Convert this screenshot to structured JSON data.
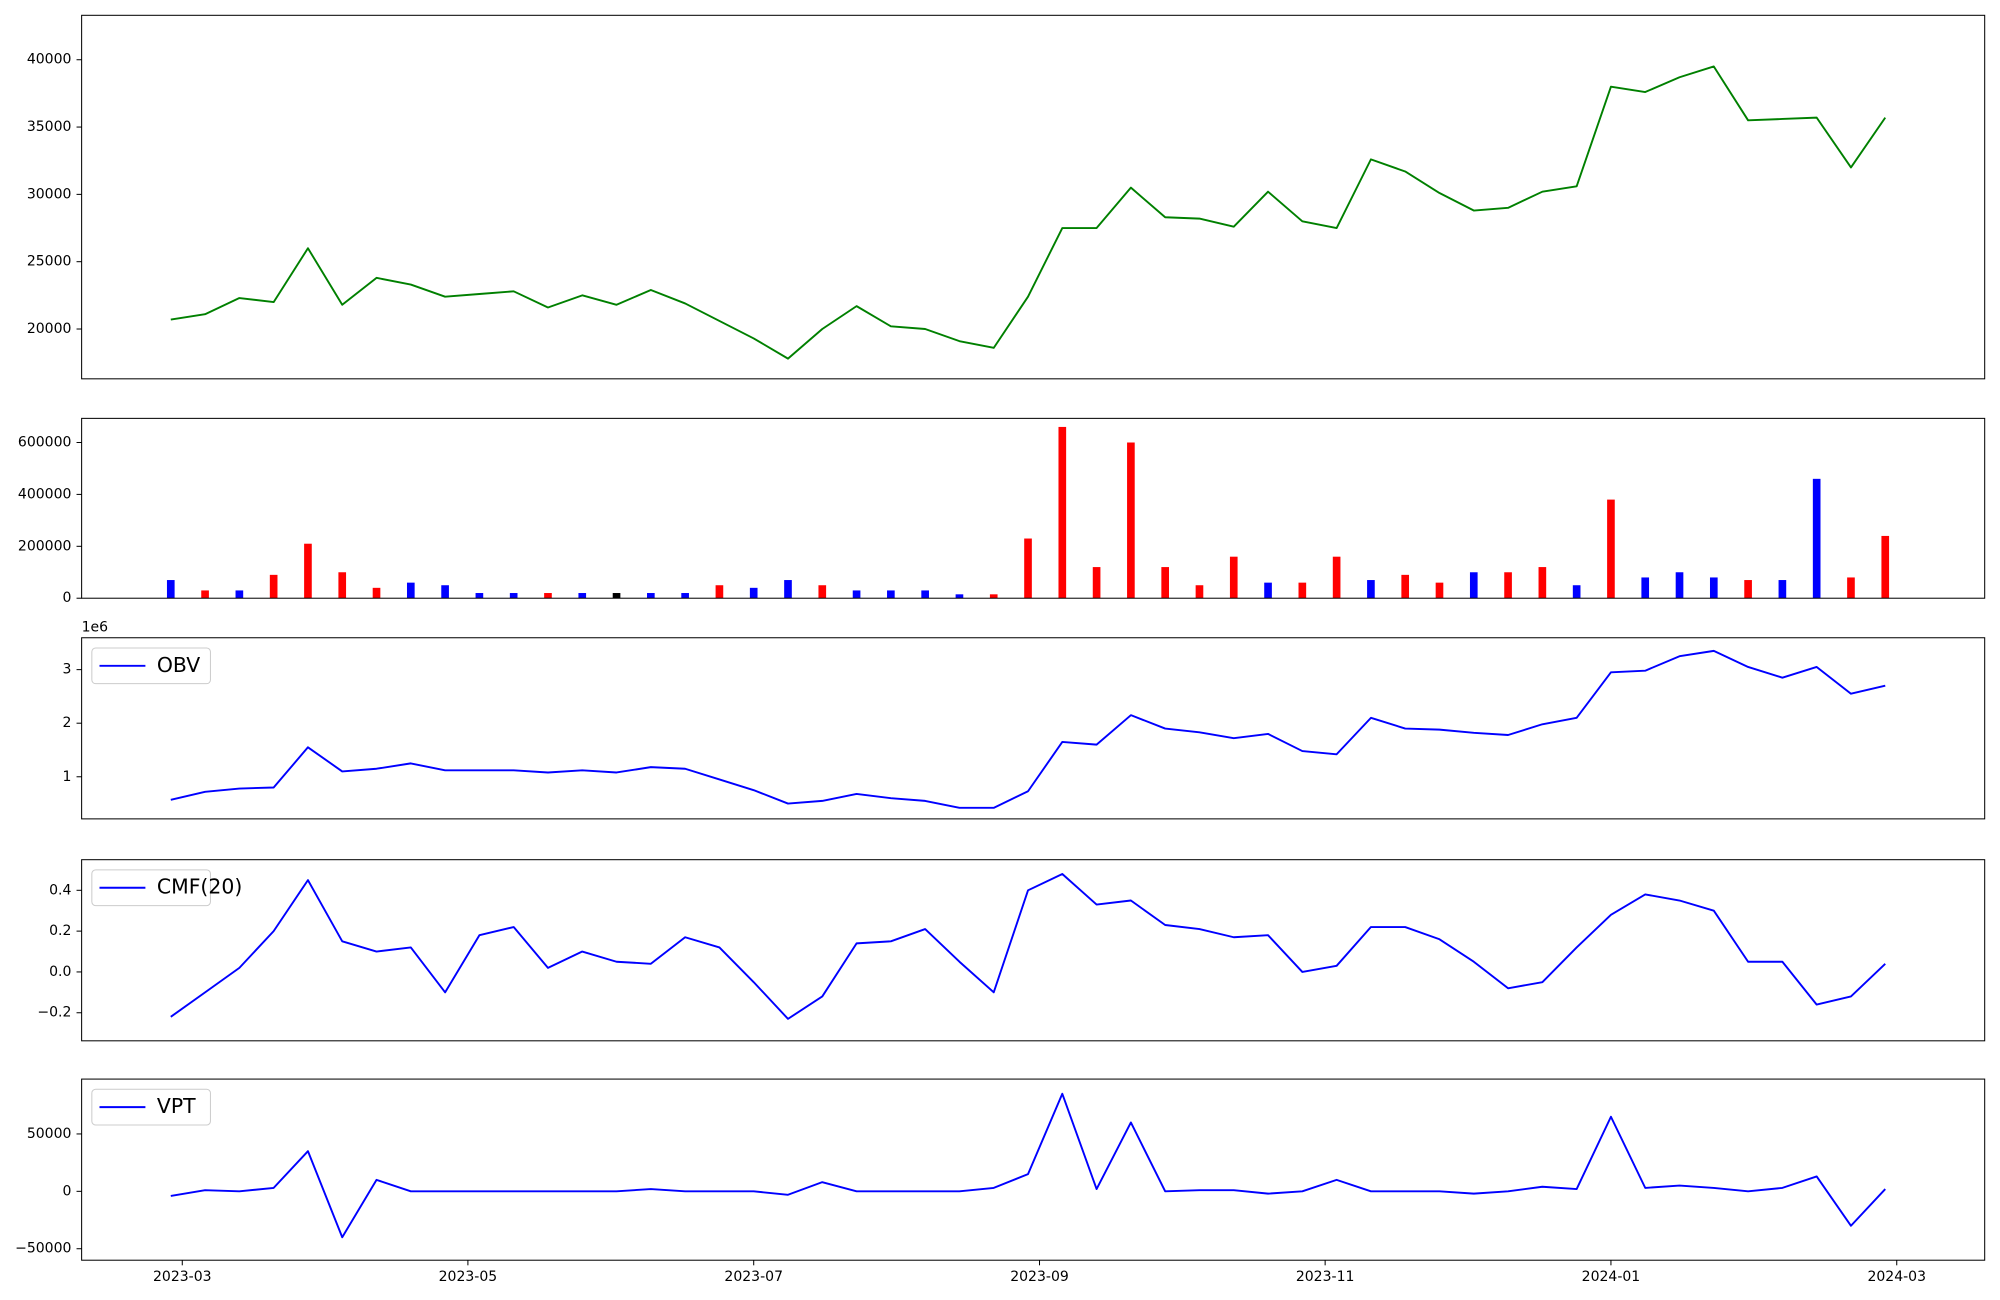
{
  "chart_data": [
    {
      "type": "line",
      "x": [
        2023.16,
        2023.18,
        2023.2,
        2023.22,
        2023.24,
        2023.26,
        2023.28,
        2023.3,
        2023.32,
        2023.34,
        2023.36,
        2023.38,
        2023.4,
        2023.42,
        2023.44,
        2023.46,
        2023.48,
        2023.5,
        2023.52,
        2023.54,
        2023.56,
        2023.58,
        2023.6,
        2023.62,
        2023.64,
        2023.66,
        2023.68,
        2023.7,
        2023.72,
        2023.74,
        2023.76,
        2023.78,
        2023.8,
        2023.82,
        2023.84,
        2023.86,
        2023.88,
        2023.9,
        2023.92,
        2023.94,
        2023.96,
        2023.98,
        2024,
        2024.02,
        2024.04,
        2024.06,
        2024.08,
        2024.1,
        2024.12,
        2024.14,
        2024.16
      ],
      "series": [
        {
          "color": "#008000",
          "values": [
            20700,
            21100,
            22300,
            22000,
            26000,
            21800,
            23800,
            23300,
            22400,
            22600,
            22800,
            21600,
            22500,
            21800,
            22900,
            21900,
            20600,
            19300,
            17800,
            20000,
            21700,
            20200,
            20000,
            19100,
            18600,
            22400,
            27500,
            27500,
            30500,
            28300,
            28200,
            27600,
            30200,
            28000,
            27500,
            32600,
            31700,
            30100,
            28800,
            29000,
            30200,
            30600,
            38000,
            37600,
            38700,
            39500,
            35500,
            35600,
            35700,
            32000,
            35700
          ]
        }
      ],
      "xlim": [
        2023.108,
        2024.218
      ],
      "ylim": [
        16300,
        43300
      ],
      "yticks": [
        20000,
        25000,
        30000,
        35000,
        40000
      ]
    },
    {
      "type": "bar",
      "x": [
        2023.16,
        2023.18,
        2023.2,
        2023.22,
        2023.24,
        2023.26,
        2023.28,
        2023.3,
        2023.32,
        2023.34,
        2023.36,
        2023.38,
        2023.4,
        2023.42,
        2023.44,
        2023.46,
        2023.48,
        2023.5,
        2023.52,
        2023.54,
        2023.56,
        2023.58,
        2023.6,
        2023.62,
        2023.64,
        2023.66,
        2023.68,
        2023.7,
        2023.72,
        2023.74,
        2023.76,
        2023.78,
        2023.8,
        2023.82,
        2023.84,
        2023.86,
        2023.88,
        2023.9,
        2023.92,
        2023.94,
        2023.96,
        2023.98,
        2024,
        2024.02,
        2024.04,
        2024.06,
        2024.08,
        2024.1,
        2024.12,
        2024.14,
        2024.16
      ],
      "values": [
        70000,
        30000,
        30000,
        90000,
        210000,
        100000,
        40000,
        60000,
        50000,
        20000,
        20000,
        20000,
        20000,
        20000,
        20000,
        20000,
        50000,
        40000,
        70000,
        50000,
        30000,
        30000,
        30000,
        15000,
        15000,
        230000,
        660000,
        120000,
        600000,
        120000,
        50000,
        160000,
        60000,
        60000,
        160000,
        70000,
        90000,
        60000,
        100000,
        100000,
        120000,
        50000,
        380000,
        80000,
        100000,
        80000,
        70000,
        70000,
        460000,
        80000,
        240000
      ],
      "colors": [
        "blue",
        "red",
        "blue",
        "red",
        "red",
        "red",
        "red",
        "blue",
        "blue",
        "blue",
        "blue",
        "red",
        "blue",
        "black",
        "blue",
        "blue",
        "red",
        "blue",
        "blue",
        "red",
        "blue",
        "blue",
        "blue",
        "blue",
        "red",
        "red",
        "red",
        "red",
        "red",
        "red",
        "red",
        "red",
        "blue",
        "red",
        "red",
        "blue",
        "red",
        "red",
        "blue",
        "red",
        "red",
        "blue",
        "red",
        "blue",
        "blue",
        "blue",
        "red",
        "blue",
        "blue",
        "red",
        "red"
      ],
      "xlim": [
        2023.108,
        2024.218
      ],
      "ylim": [
        0,
        693000
      ],
      "yticks": [
        0,
        200000,
        400000,
        600000
      ]
    },
    {
      "type": "line",
      "x": [
        2023.16,
        2023.18,
        2023.2,
        2023.22,
        2023.24,
        2023.26,
        2023.28,
        2023.3,
        2023.32,
        2023.34,
        2023.36,
        2023.38,
        2023.4,
        2023.42,
        2023.44,
        2023.46,
        2023.48,
        2023.5,
        2023.52,
        2023.54,
        2023.56,
        2023.58,
        2023.6,
        2023.62,
        2023.64,
        2023.66,
        2023.68,
        2023.7,
        2023.72,
        2023.74,
        2023.76,
        2023.78,
        2023.8,
        2023.82,
        2023.84,
        2023.86,
        2023.88,
        2023.9,
        2023.92,
        2023.94,
        2023.96,
        2023.98,
        2024,
        2024.02,
        2024.04,
        2024.06,
        2024.08,
        2024.1,
        2024.12,
        2024.14,
        2024.16
      ],
      "series": [
        {
          "name": "OBV",
          "color": "#0000ff",
          "values": [
            0.57,
            0.72,
            0.78,
            0.8,
            1.55,
            1.1,
            1.15,
            1.25,
            1.12,
            1.12,
            1.12,
            1.08,
            1.12,
            1.08,
            1.18,
            1.15,
            0.95,
            0.75,
            0.5,
            0.55,
            0.68,
            0.6,
            0.55,
            0.42,
            0.42,
            0.73,
            1.65,
            1.6,
            2.15,
            1.9,
            1.83,
            1.72,
            1.8,
            1.48,
            1.42,
            2.1,
            1.9,
            1.88,
            1.82,
            1.78,
            1.98,
            2.1,
            2.95,
            2.98,
            3.25,
            3.35,
            3.05,
            2.85,
            3.05,
            2.55,
            2.7
          ]
        }
      ],
      "legend": "upper left",
      "y_offset_label": "1e6",
      "xlim": [
        2023.108,
        2024.218
      ],
      "ylim": [
        0.214,
        3.595
      ],
      "yticks": [
        1,
        2,
        3
      ]
    },
    {
      "type": "line",
      "x": [
        2023.16,
        2023.18,
        2023.2,
        2023.22,
        2023.24,
        2023.26,
        2023.28,
        2023.3,
        2023.32,
        2023.34,
        2023.36,
        2023.38,
        2023.4,
        2023.42,
        2023.44,
        2023.46,
        2023.48,
        2023.5,
        2023.52,
        2023.54,
        2023.56,
        2023.58,
        2023.6,
        2023.62,
        2023.64,
        2023.66,
        2023.68,
        2023.7,
        2023.72,
        2023.74,
        2023.76,
        2023.78,
        2023.8,
        2023.82,
        2023.84,
        2023.86,
        2023.88,
        2023.9,
        2023.92,
        2023.94,
        2023.96,
        2023.98,
        2024,
        2024.02,
        2024.04,
        2024.06,
        2024.08,
        2024.1,
        2024.12,
        2024.14,
        2024.16
      ],
      "series": [
        {
          "name": "CMF(20)",
          "color": "#0000ff",
          "values": [
            -0.22,
            -0.1,
            0.02,
            0.2,
            0.45,
            0.15,
            0.1,
            0.12,
            -0.1,
            0.18,
            0.22,
            0.02,
            0.1,
            0.05,
            0.04,
            0.17,
            0.12,
            -0.05,
            -0.23,
            -0.12,
            0.14,
            0.15,
            0.21,
            0.05,
            -0.1,
            0.4,
            0.48,
            0.33,
            0.35,
            0.23,
            0.21,
            0.17,
            0.18,
            0,
            0.03,
            0.22,
            0.22,
            0.16,
            0.05,
            -0.08,
            -0.05,
            0.12,
            0.28,
            0.38,
            0.35,
            0.3,
            0.05,
            0.05,
            -0.16,
            -0.12,
            0.04
          ]
        }
      ],
      "legend": "upper left",
      "xlim": [
        2023.108,
        2024.218
      ],
      "ylim": [
        -0.3375,
        0.55
      ],
      "yticks": [
        {
          "value": -0.2,
          "label": "−0.2"
        },
        {
          "value": 0,
          "label": "0.0"
        },
        0.2,
        0.4
      ]
    },
    {
      "type": "line",
      "x": [
        2023.16,
        2023.18,
        2023.2,
        2023.22,
        2023.24,
        2023.26,
        2023.28,
        2023.3,
        2023.32,
        2023.34,
        2023.36,
        2023.38,
        2023.4,
        2023.42,
        2023.44,
        2023.46,
        2023.48,
        2023.5,
        2023.52,
        2023.54,
        2023.56,
        2023.58,
        2023.6,
        2023.62,
        2023.64,
        2023.66,
        2023.68,
        2023.7,
        2023.72,
        2023.74,
        2023.76,
        2023.78,
        2023.8,
        2023.82,
        2023.84,
        2023.86,
        2023.88,
        2023.9,
        2023.92,
        2023.94,
        2023.96,
        2023.98,
        2024,
        2024.02,
        2024.04,
        2024.06,
        2024.08,
        2024.1,
        2024.12,
        2024.14,
        2024.16
      ],
      "series": [
        {
          "name": "VPT",
          "color": "#0000ff",
          "values": [
            -4000,
            1000,
            0,
            3000,
            35000,
            -40000,
            10000,
            0,
            0,
            0,
            0,
            0,
            0,
            0,
            2000,
            0,
            0,
            0,
            -3000,
            8000,
            0,
            0,
            0,
            0,
            3000,
            15000,
            85000,
            2000,
            60000,
            0,
            1000,
            1000,
            -2000,
            0,
            10000,
            0,
            0,
            0,
            -2000,
            0,
            4000,
            2000,
            65000,
            3000,
            5000,
            3000,
            0,
            3000,
            13000,
            -30000,
            2000
          ]
        }
      ],
      "legend": "upper left",
      "xlim": [
        2023.108,
        2024.218
      ],
      "ylim": [
        -60000,
        97800
      ],
      "yticks": [
        {
          "value": -50000,
          "label": "−50000"
        },
        0,
        50000
      ],
      "xticks": [
        {
          "value": 2023.1667,
          "label": "2023-03"
        },
        {
          "value": 2023.3333,
          "label": "2023-05"
        },
        {
          "value": 2023.5,
          "label": "2023-07"
        },
        {
          "value": 2023.6667,
          "label": "2023-09"
        },
        {
          "value": 2023.8333,
          "label": "2023-11"
        },
        {
          "value": 2024,
          "label": "2024-01"
        },
        {
          "value": 2024.1667,
          "label": "2024-03"
        }
      ]
    }
  ]
}
